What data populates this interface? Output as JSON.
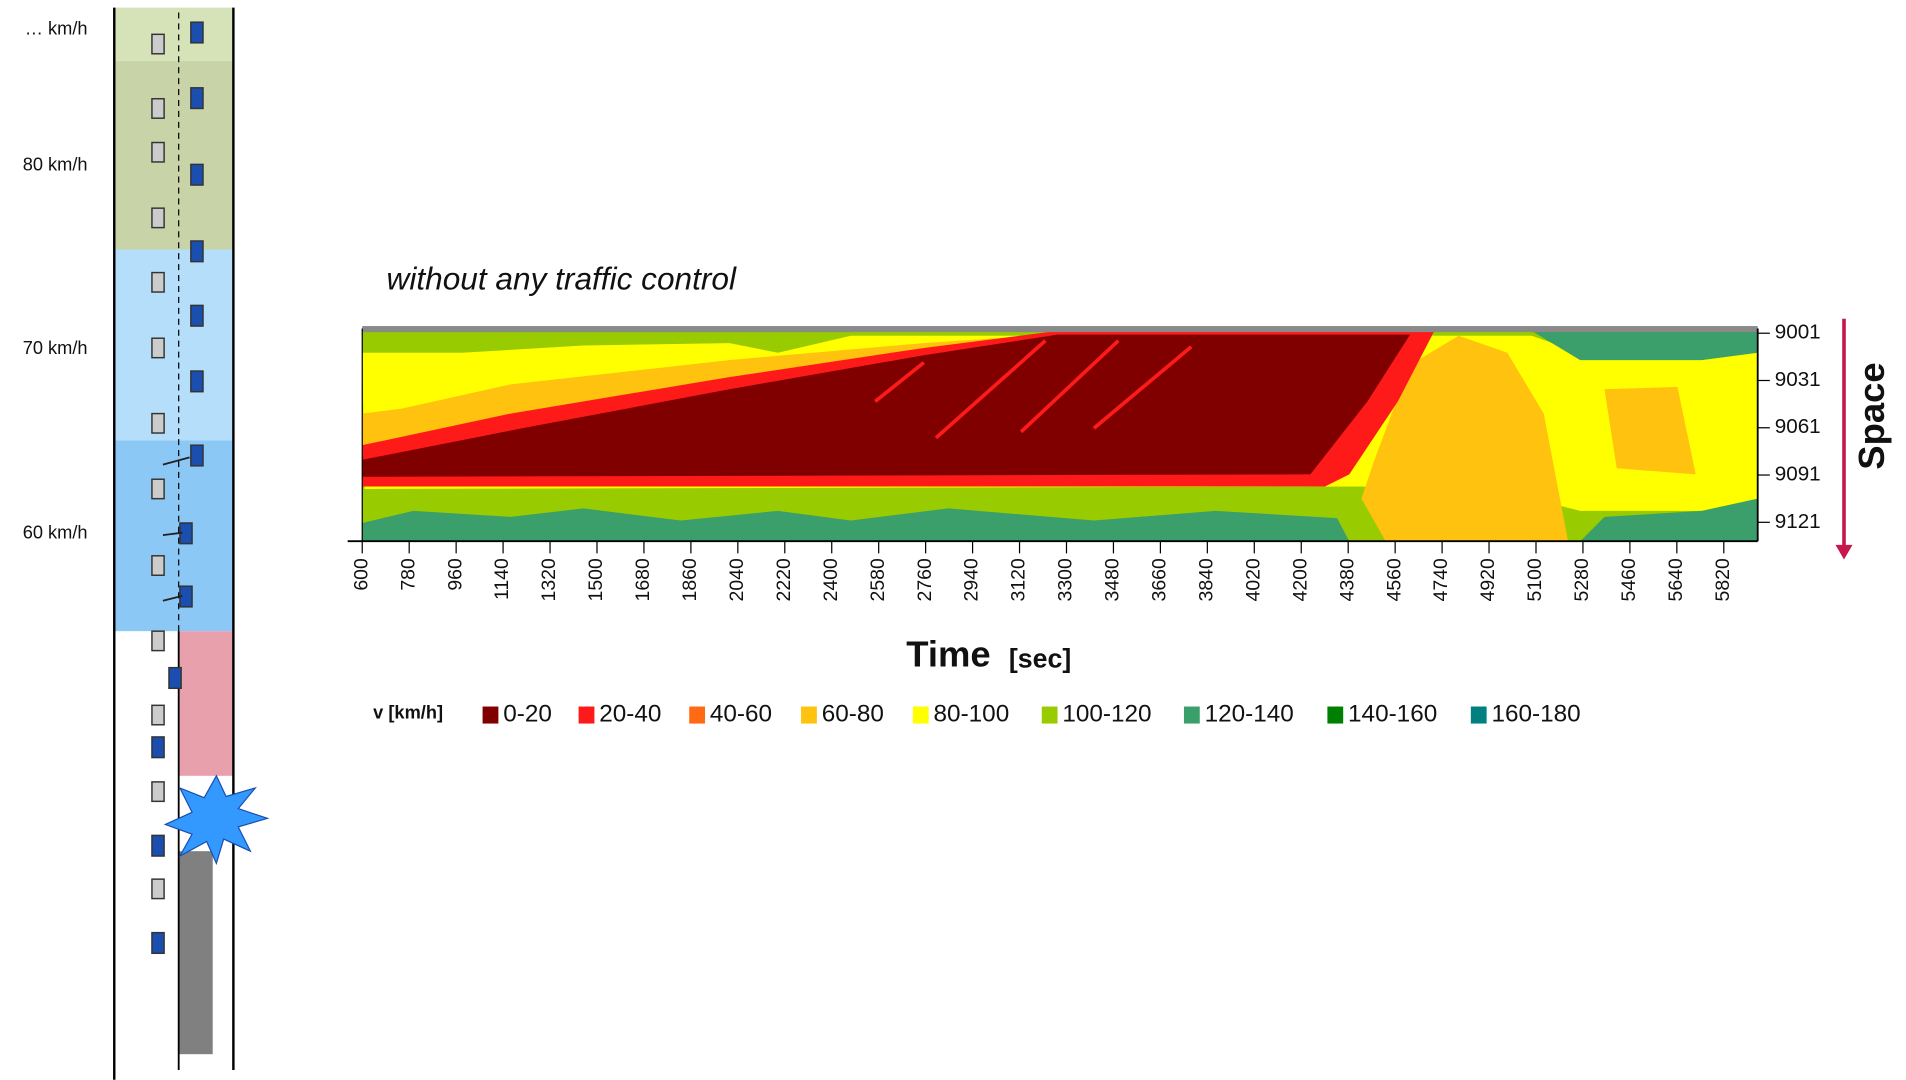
{
  "speed_labels": [
    "… km/h",
    "80 km/h",
    "70 km/h",
    "60 km/h"
  ],
  "chart_data": {
    "type": "contour",
    "title": "without any traffic control",
    "x_label": "Time",
    "x_unit": "[sec]",
    "y_label": "Space",
    "xlim": [
      600,
      5950
    ],
    "xticks": [
      600,
      780,
      960,
      1140,
      1320,
      1500,
      1680,
      1860,
      2040,
      2220,
      2400,
      2580,
      2760,
      2940,
      3120,
      3300,
      3480,
      3660,
      3840,
      4020,
      4200,
      4380,
      4560,
      4740,
      4920,
      5100,
      5280,
      5460,
      5640,
      5820
    ],
    "ylim": [
      8998,
      9133
    ],
    "yticks": [
      9001,
      9031,
      9061,
      9091,
      9121
    ],
    "legend_title": "v [km/h]",
    "series": [
      {
        "name": "0-20",
        "color": "#800000"
      },
      {
        "name": "20-40",
        "color": "#ff1a1a"
      },
      {
        "name": "40-60",
        "color": "#ff6a13"
      },
      {
        "name": "60-80",
        "color": "#ffc20e"
      },
      {
        "name": "80-100",
        "color": "#ffff00"
      },
      {
        "name": "100-120",
        "color": "#99cc00"
      },
      {
        "name": "120-140",
        "color": "#3a9f6b"
      },
      {
        "name": "140-160",
        "color": "#008000"
      },
      {
        "name": "160-180",
        "color": "#008080"
      }
    ]
  }
}
